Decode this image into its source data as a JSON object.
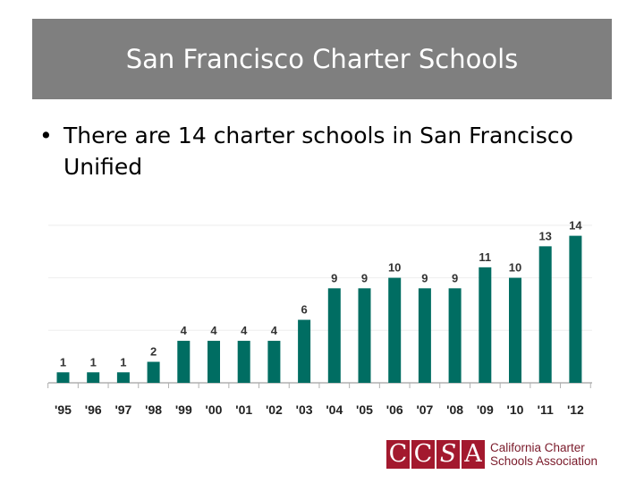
{
  "slide": {
    "title": "San Francisco Charter Schools",
    "bullet_marker": "•",
    "bullet": "There are 14 charter schools in San Francisco Unified"
  },
  "chart_data": {
    "type": "bar",
    "categories": [
      "'95",
      "'96",
      "'97",
      "'98",
      "'99",
      "'00",
      "'01",
      "'02",
      "'03",
      "'04",
      "'05",
      "'06",
      "'07",
      "'08",
      "'09",
      "'10",
      "'11",
      "'12"
    ],
    "values": [
      1,
      1,
      1,
      2,
      4,
      4,
      4,
      4,
      6,
      9,
      9,
      10,
      9,
      9,
      11,
      10,
      13,
      14
    ],
    "title": "",
    "xlabel": "",
    "ylabel": "",
    "ylim": [
      0,
      15.5
    ],
    "grid": true,
    "bar_color": "#006d62",
    "grid_color": "#eeeeee",
    "axis_color": "#b0b0b0"
  },
  "logo": {
    "letters": [
      "C",
      "C",
      "S",
      "A"
    ],
    "line1": "California Charter",
    "line2": "Schools Association",
    "color": "#a3192e"
  }
}
